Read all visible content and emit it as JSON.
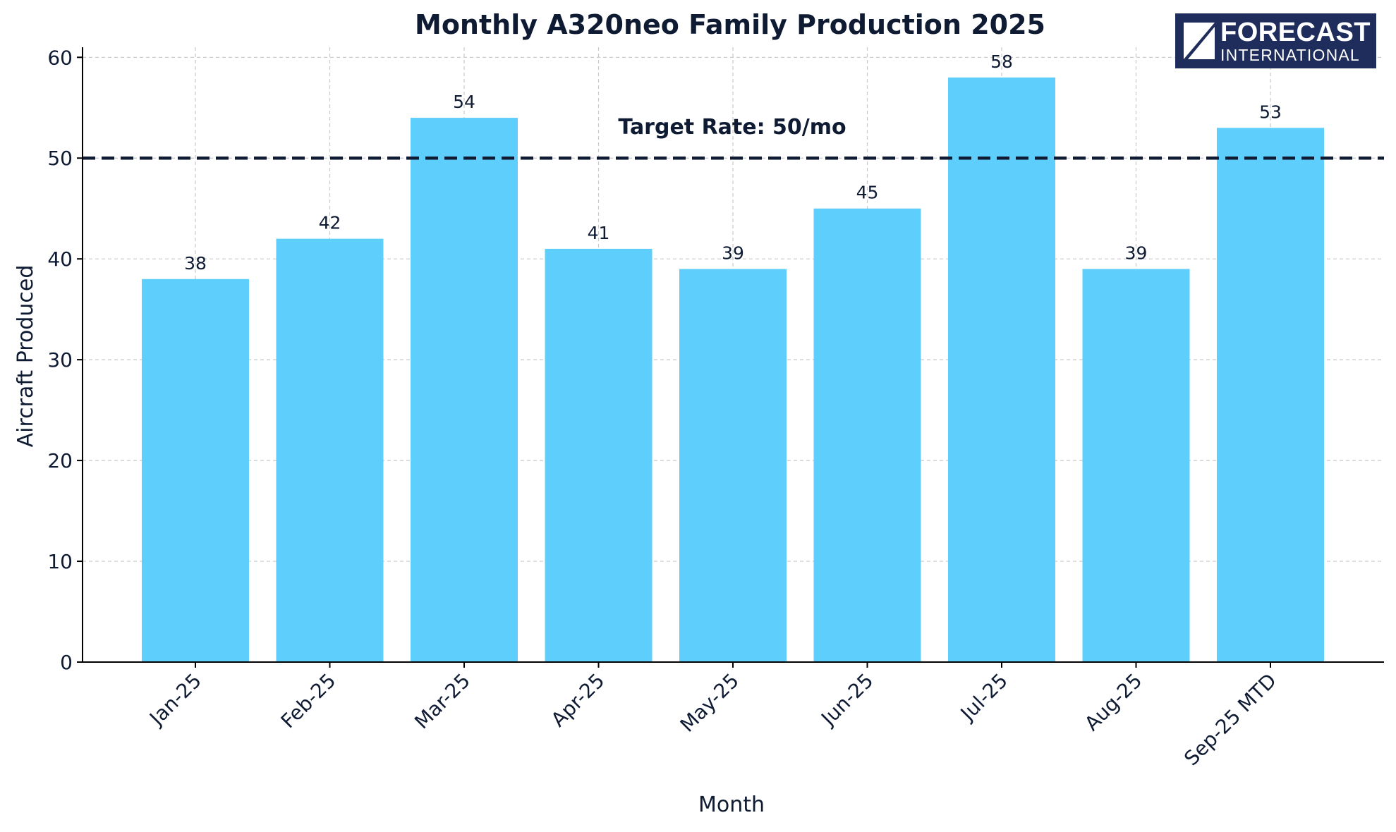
{
  "chart_data": {
    "type": "bar",
    "title": "Monthly A320neo Family Production 2025",
    "xlabel": "Month",
    "ylabel": "Aircraft Produced",
    "categories": [
      "Jan-25",
      "Feb-25",
      "Mar-25",
      "Apr-25",
      "May-25",
      "Jun-25",
      "Jul-25",
      "Aug-25",
      "Sep-25 MTD"
    ],
    "values": [
      38,
      42,
      54,
      41,
      39,
      45,
      58,
      39,
      53
    ],
    "ylim": [
      0,
      61
    ],
    "yticks": [
      0,
      10,
      20,
      30,
      40,
      50,
      60
    ],
    "grid": true,
    "bar_color": "#5ecffc",
    "reference_line": {
      "value": 50,
      "label": "Target Rate: 50/mo",
      "style": "dashed",
      "color": "#0f1b33"
    }
  },
  "logo": {
    "line1": "FORECAST",
    "line2": "INTERNATIONAL",
    "background": "#1f2d5c"
  },
  "colors": {
    "text": "#0f1b33",
    "grid": "#c8c8c8",
    "axis": "#000000"
  }
}
